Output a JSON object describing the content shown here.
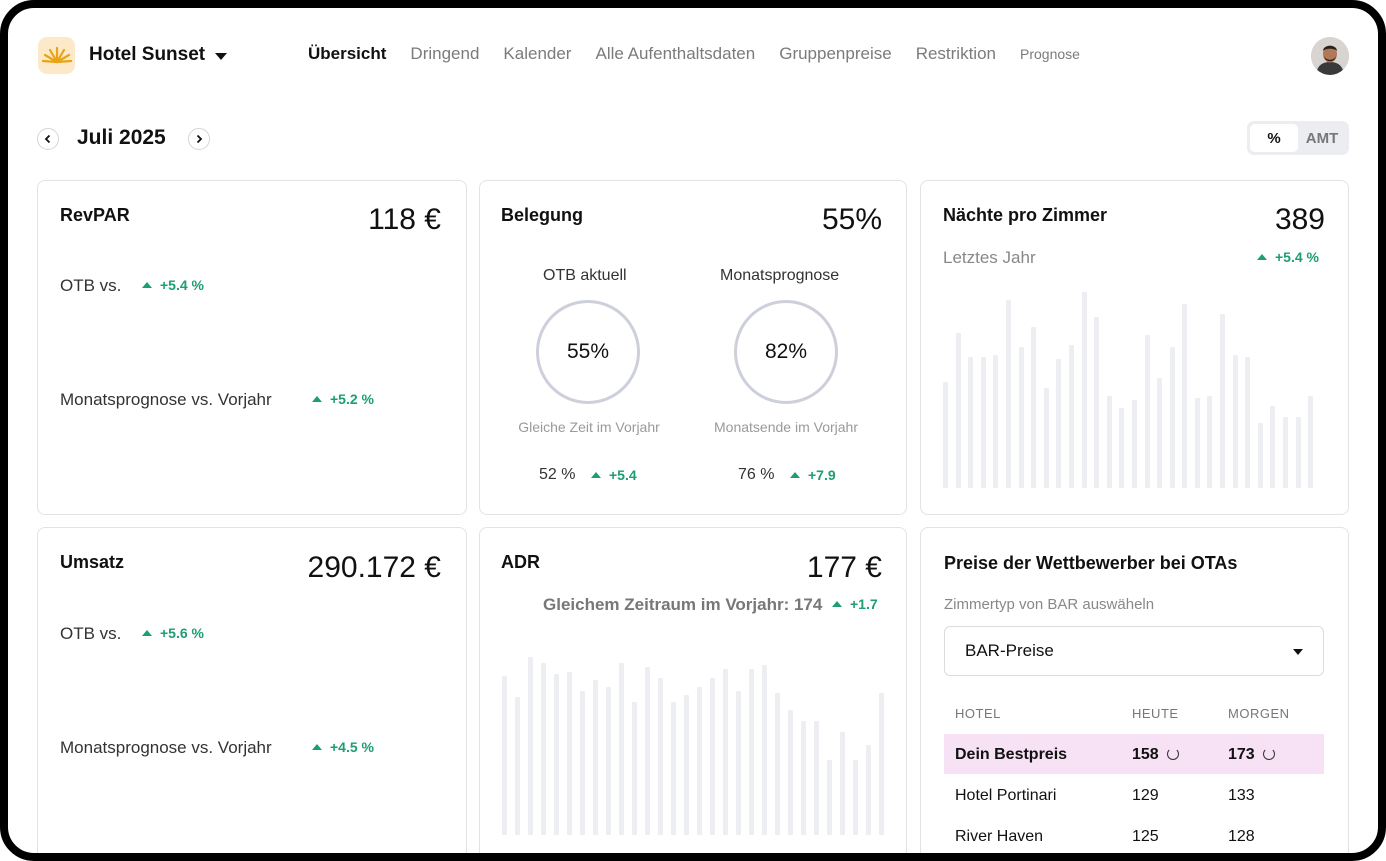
{
  "header": {
    "hotel_name": "Hotel Sunset",
    "nav": [
      "Übersicht",
      "Dringend",
      "Kalender",
      "Alle Aufenthaltsdaten",
      "Gruppenpreise",
      "Restriktion",
      "Prognose"
    ]
  },
  "period": {
    "month": "Juli 2025"
  },
  "toggle": {
    "percent": "%",
    "amount": "AMT"
  },
  "revpar": {
    "title": "RevPAR",
    "value": "118 €",
    "otb_label": "OTB vs.",
    "otb_delta": "+5.4 %",
    "forecast_label": "Monatsprognose vs. Vorjahr",
    "forecast_delta": "+5.2 %"
  },
  "occupancy": {
    "title": "Belegung",
    "value": "55%",
    "otb_label": "OTB aktuell",
    "otb_ring": "55%",
    "otb_sub": "Gleiche Zeit im Vorjahr",
    "otb_prev": "52 %",
    "otb_delta": "+5.4",
    "fc_label": "Monatsprognose",
    "fc_ring": "82%",
    "fc_sub": "Monatsende im Vorjahr",
    "fc_prev": "76 %",
    "fc_delta": "+7.9"
  },
  "nights": {
    "title": "Nächte pro Zimmer",
    "value": "389",
    "sub": "Letztes Jahr",
    "delta": "+5.4 %"
  },
  "revenue": {
    "title": "Umsatz",
    "value": "290.172 €",
    "otb_label": "OTB vs.",
    "otb_delta": "+5.6 %",
    "forecast_label": "Monatsprognose vs. Vorjahr",
    "forecast_delta": "+4.5 %"
  },
  "adr": {
    "title": "ADR",
    "value": "177 €",
    "compare": "Gleichem Zeitraum im Vorjahr: 174",
    "delta": "+1.7"
  },
  "competitors": {
    "title": "Preise der Wettbewerber bei OTAs",
    "select_label": "Zimmertyp von BAR auswäheln",
    "select_value": "BAR-Preise",
    "headers": [
      "HOTEL",
      "HEUTE",
      "MORGEN"
    ],
    "rows": [
      {
        "hotel": "Dein Bestpreis",
        "today": "158",
        "tomorrow": "173"
      },
      {
        "hotel": "Hotel Portinari",
        "today": "129",
        "tomorrow": "133"
      },
      {
        "hotel": "River Haven",
        "today": "125",
        "tomorrow": "128"
      }
    ]
  },
  "colors": {
    "positive": "#1d9e6f",
    "highlight_row": "#f6e2f4",
    "bar": "#eceef2"
  },
  "nights_bars": [
    0.54,
    0.79,
    0.67,
    0.67,
    0.68,
    0.96,
    0.72,
    0.82,
    0.51,
    0.66,
    0.73,
    1.0,
    0.87,
    0.47,
    0.41,
    0.45,
    0.78,
    0.56,
    0.72,
    0.94,
    0.46,
    0.47,
    0.89,
    0.68,
    0.67,
    0.33,
    0.42,
    0.36,
    0.36,
    0.47
  ],
  "adr_bars": [
    0.74,
    0.64,
    0.83,
    0.8,
    0.75,
    0.76,
    0.67,
    0.72,
    0.69,
    0.8,
    0.62,
    0.78,
    0.73,
    0.62,
    0.65,
    0.69,
    0.73,
    0.77,
    0.67,
    0.77,
    0.79,
    0.66,
    0.58,
    0.53,
    0.53,
    0.35,
    0.48,
    0.35,
    0.42,
    0.66
  ]
}
